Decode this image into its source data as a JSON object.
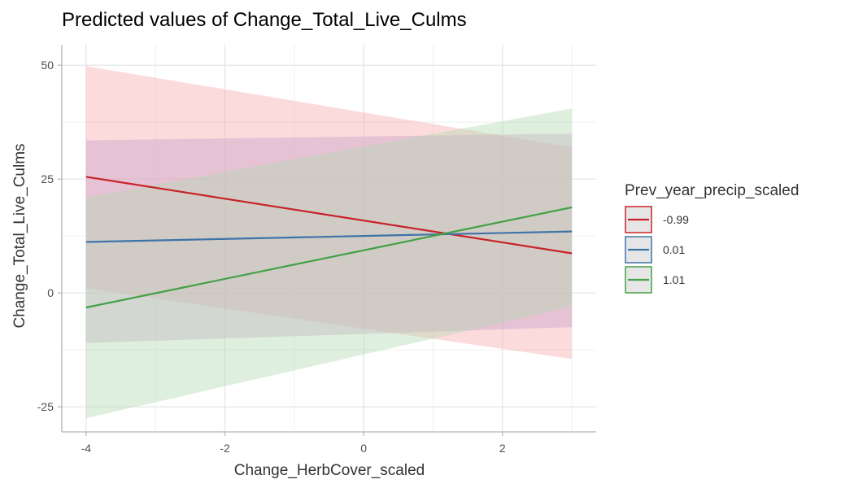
{
  "chart_data": {
    "type": "line",
    "title": "Predicted values of Change_Total_Live_Culms",
    "xlabel": "Change_HerbCover_scaled",
    "ylabel": "Change_Total_Live_Culms",
    "xlim": [
      -4.35,
      3.35
    ],
    "ylim": [
      -30.5,
      54.5
    ],
    "x_ticks": [
      -4,
      -2,
      0,
      2
    ],
    "x_tick_labels": [
      "-4",
      "-2",
      "0",
      "2"
    ],
    "y_ticks": [
      -25,
      0,
      25,
      50
    ],
    "y_tick_labels": [
      "-25",
      "0",
      "25",
      "50"
    ],
    "grid": true,
    "legend": {
      "title": "Prev_year_precip_scaled",
      "position": "right"
    },
    "series": [
      {
        "name": "-0.99",
        "color": "#c8232a",
        "fill": "#f8a9ad",
        "x": [
          -4,
          3
        ],
        "y": [
          25.5,
          8.7
        ],
        "ci_low": [
          1.0,
          -14.5
        ],
        "ci_high": [
          49.8,
          32.0
        ]
      },
      {
        "name": "0.01",
        "color": "#3e73a8",
        "fill": "#c7a3c7",
        "x": [
          -4,
          3
        ],
        "y": [
          11.2,
          13.5
        ],
        "ci_low": [
          -11.0,
          -7.5
        ],
        "ci_high": [
          33.5,
          35.0
        ]
      },
      {
        "name": "1.01",
        "color": "#43a047",
        "fill": "#b3d9b0",
        "x": [
          -4,
          3
        ],
        "y": [
          -3.2,
          18.8
        ],
        "ci_low": [
          -27.5,
          -3.0
        ],
        "ci_high": [
          21.0,
          40.5
        ]
      }
    ]
  }
}
